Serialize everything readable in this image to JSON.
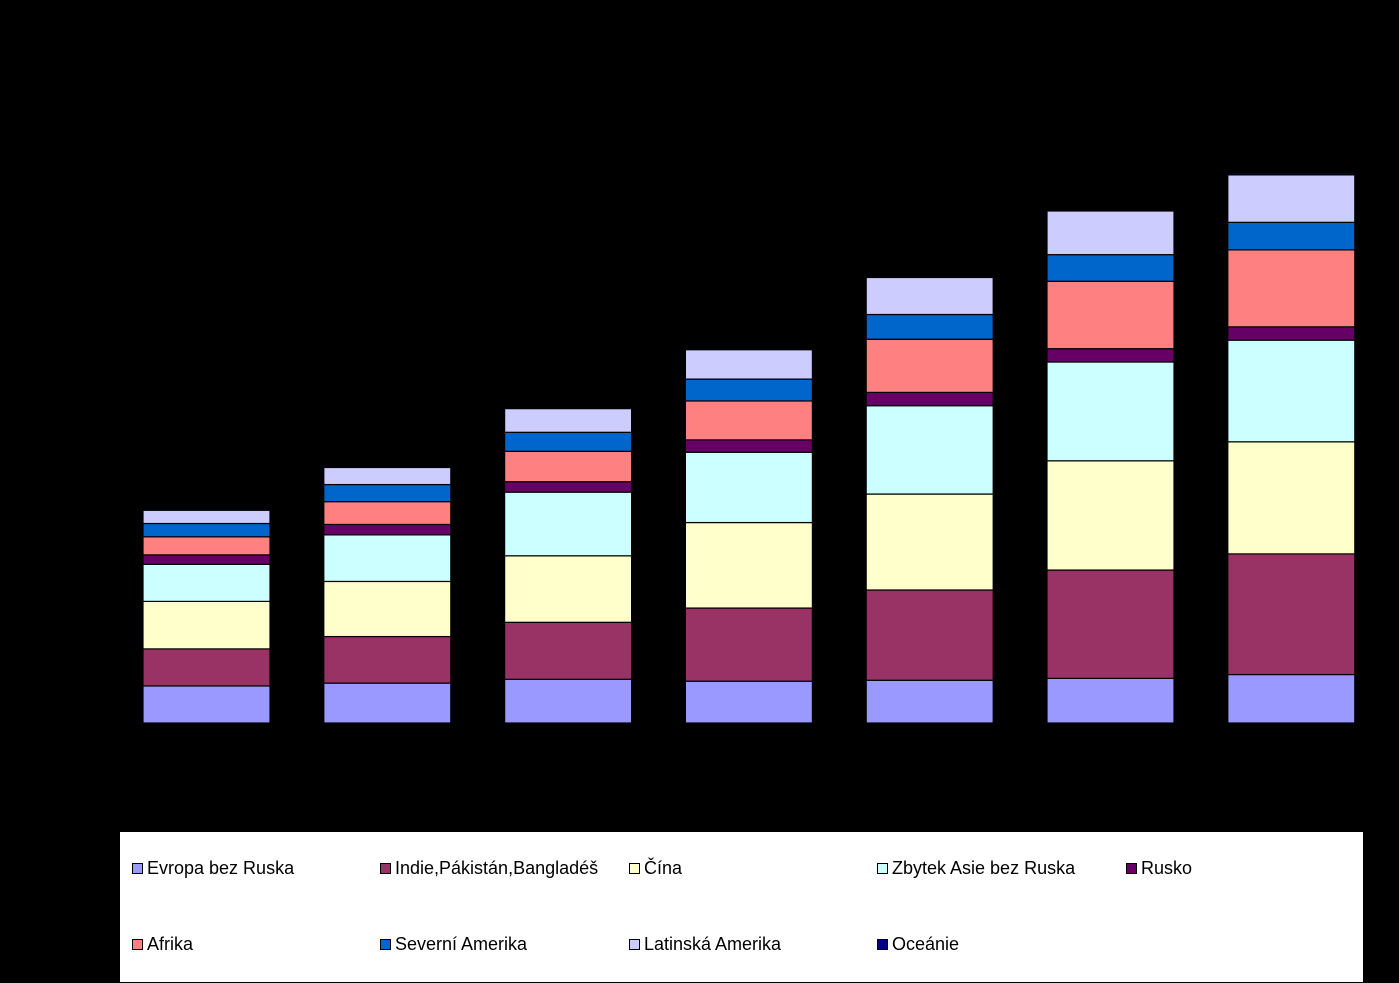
{
  "chart_data": {
    "type": "bar",
    "stacked": true,
    "categories": [
      "",
      "",
      "",
      "",
      "",
      "",
      ""
    ],
    "ylim": [
      0,
      600
    ],
    "series": [
      {
        "name": "Evropa bez Ruska",
        "color": "#9999FF",
        "values": [
          39,
          42,
          46,
          44,
          45,
          47,
          51
        ]
      },
      {
        "name": "Indie,Pákistán,Bangladéš",
        "color": "#993366",
        "values": [
          39,
          49,
          60,
          77,
          95,
          114,
          127
        ]
      },
      {
        "name": "Čína",
        "color": "#FFFFCC",
        "values": [
          50,
          58,
          70,
          90,
          101,
          115,
          118
        ]
      },
      {
        "name": "Zbytek Asie bez Ruska",
        "color": "#CCFFFF",
        "values": [
          39,
          49,
          67,
          74,
          93,
          104,
          107
        ]
      },
      {
        "name": "Rusko",
        "color": "#660066",
        "values": [
          10,
          11,
          11,
          13,
          14,
          14,
          14
        ]
      },
      {
        "name": "Afrika",
        "color": "#FF8080",
        "values": [
          19,
          24,
          32,
          41,
          56,
          71,
          81
        ]
      },
      {
        "name": "Severní Amerika",
        "color": "#0066CC",
        "values": [
          14,
          18,
          20,
          23,
          26,
          28,
          29
        ]
      },
      {
        "name": "Latinská Amerika",
        "color": "#CCCCFF",
        "values": [
          14,
          18,
          25,
          31,
          39,
          46,
          50
        ]
      },
      {
        "name": "Oceánie",
        "color": "#000080",
        "values": [
          1,
          1,
          1,
          1,
          1,
          1,
          2
        ]
      }
    ]
  }
}
